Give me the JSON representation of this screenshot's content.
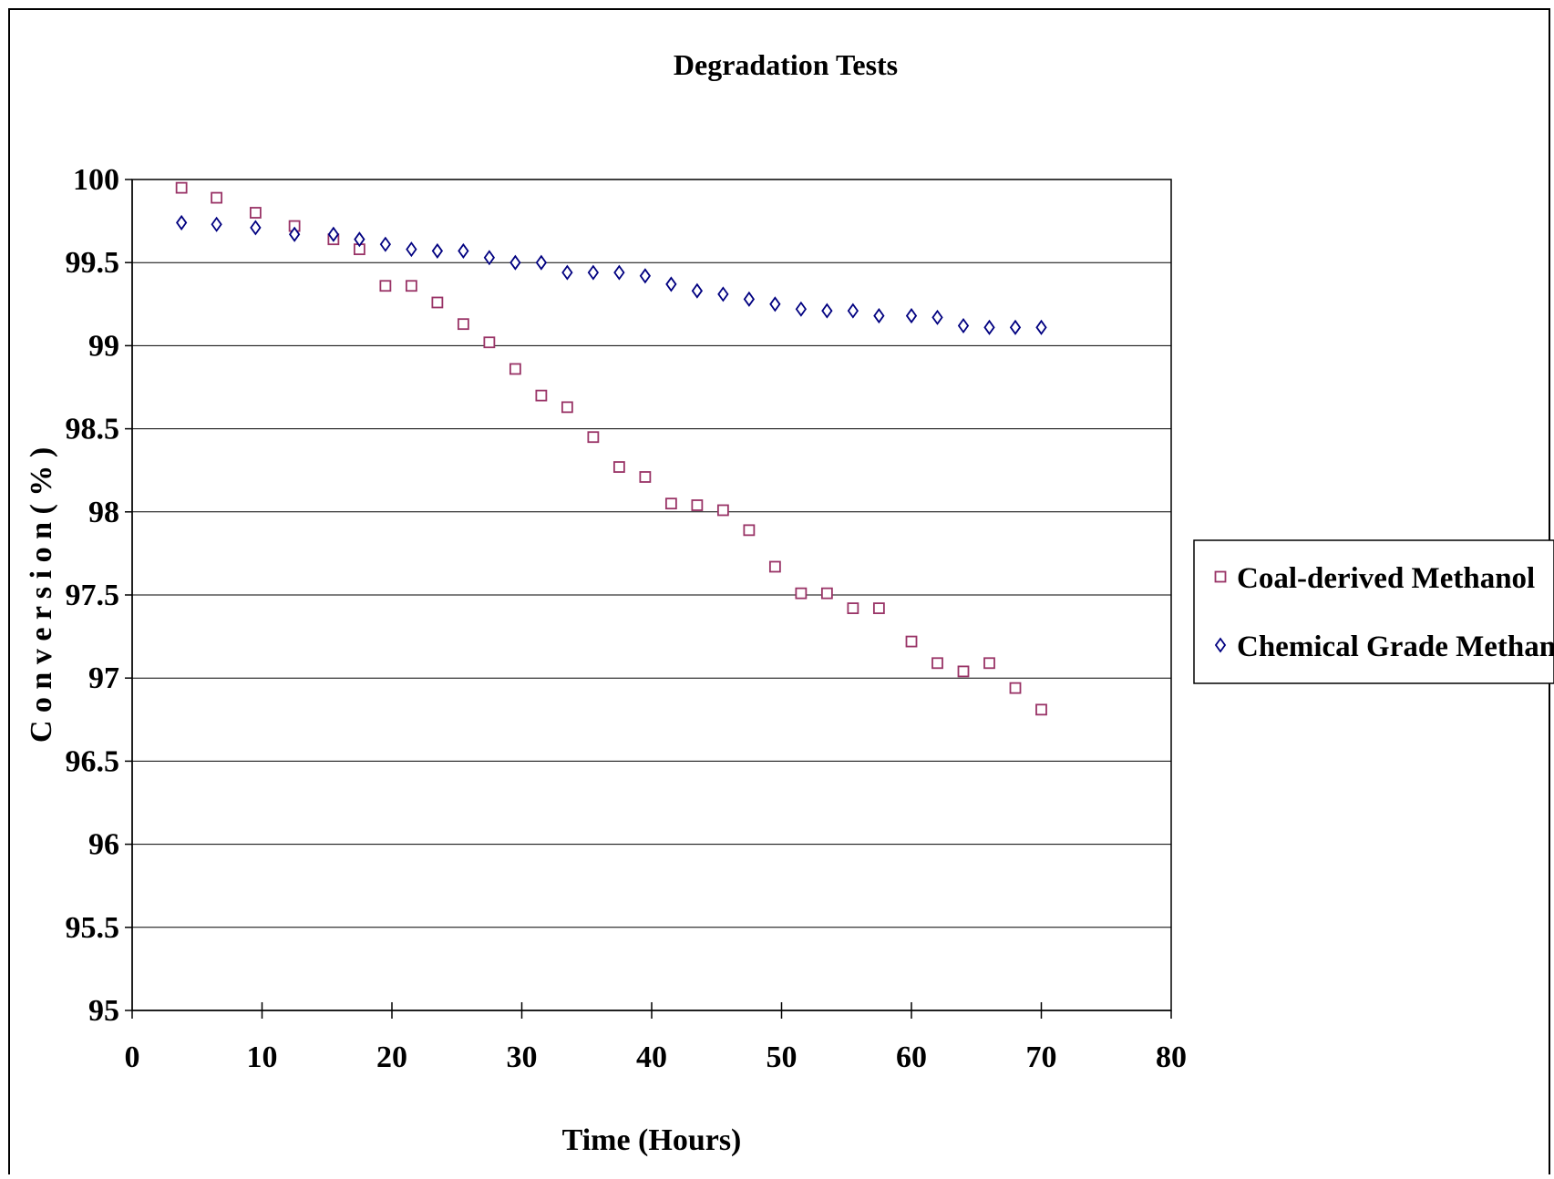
{
  "chart_data": {
    "type": "scatter",
    "title": "Degradation Tests",
    "xlabel": "Time (Hours)",
    "ylabel": "C o n v e r s i o n ( % )",
    "xlim": [
      0,
      80
    ],
    "ylim": [
      95,
      100
    ],
    "xticks": [
      "0",
      "10",
      "20",
      "30",
      "40",
      "50",
      "60",
      "70",
      "80"
    ],
    "yticks": [
      "100",
      "99.5",
      "99",
      "98.5",
      "98",
      "97.5",
      "97",
      "96.5",
      "96",
      "95.5",
      "95"
    ],
    "grid": "horizontal",
    "legend_position": "right",
    "series": [
      {
        "name": "Coal-derived Methanol",
        "marker": "square",
        "color": "#993366",
        "x": [
          3.8,
          6.5,
          9.5,
          12.5,
          15.5,
          17.5,
          19.5,
          21.5,
          23.5,
          25.5,
          27.5,
          29.5,
          31.5,
          33.5,
          35.5,
          37.5,
          39.5,
          41.5,
          43.5,
          45.5,
          47.5,
          49.5,
          51.5,
          53.5,
          55.5,
          57.5,
          60,
          62,
          64,
          66,
          68,
          70
        ],
        "y": [
          99.95,
          99.89,
          99.8,
          99.72,
          99.64,
          99.58,
          99.36,
          99.36,
          99.26,
          99.13,
          99.02,
          98.86,
          98.7,
          98.63,
          98.45,
          98.27,
          98.21,
          98.05,
          98.04,
          98.01,
          97.89,
          97.67,
          97.51,
          97.51,
          97.42,
          97.42,
          97.22,
          97.09,
          97.04,
          97.09,
          96.94,
          96.81
        ]
      },
      {
        "name": "Chemical Grade Methanol",
        "marker": "diamond",
        "color": "#000080",
        "x": [
          3.8,
          6.5,
          9.5,
          12.5,
          15.5,
          17.5,
          19.5,
          21.5,
          23.5,
          25.5,
          27.5,
          29.5,
          31.5,
          33.5,
          35.5,
          37.5,
          39.5,
          41.5,
          43.5,
          45.5,
          47.5,
          49.5,
          51.5,
          53.5,
          55.5,
          57.5,
          60,
          62,
          64,
          66,
          68,
          70
        ],
        "y": [
          99.74,
          99.73,
          99.71,
          99.67,
          99.67,
          99.64,
          99.61,
          99.58,
          99.57,
          99.57,
          99.53,
          99.5,
          99.5,
          99.44,
          99.44,
          99.44,
          99.42,
          99.37,
          99.33,
          99.31,
          99.28,
          99.25,
          99.22,
          99.21,
          99.21,
          99.18,
          99.18,
          99.17,
          99.12,
          99.11,
          99.11,
          99.11
        ]
      }
    ]
  }
}
